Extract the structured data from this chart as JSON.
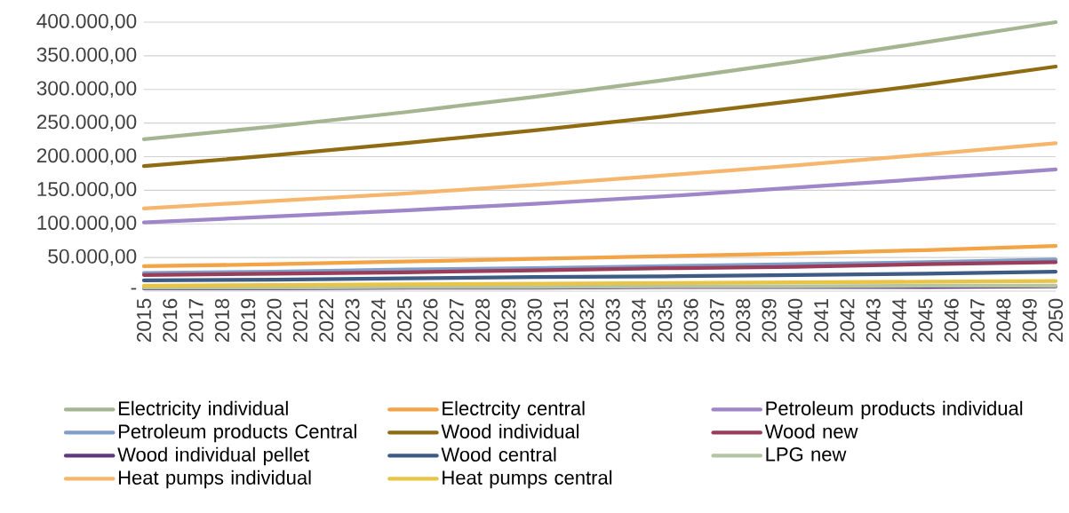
{
  "chart_data": {
    "type": "line",
    "x": [
      2015,
      2020,
      2025,
      2030,
      2035,
      2040,
      2045,
      2050
    ],
    "xlim": [
      2015,
      2050
    ],
    "xticks": [
      2015,
      2016,
      2017,
      2018,
      2019,
      2020,
      2021,
      2022,
      2023,
      2024,
      2025,
      2026,
      2027,
      2028,
      2029,
      2030,
      2031,
      2032,
      2033,
      2034,
      2035,
      2036,
      2037,
      2038,
      2039,
      2040,
      2041,
      2042,
      2043,
      2044,
      2045,
      2046,
      2047,
      2048,
      2049,
      2050
    ],
    "ylim": [
      0,
      400000
    ],
    "yticks": [
      {
        "value": 0,
        "label": "-"
      },
      {
        "value": 50000,
        "label": "50.000,00"
      },
      {
        "value": 100000,
        "label": "100.000,00"
      },
      {
        "value": 150000,
        "label": "150.000,00"
      },
      {
        "value": 200000,
        "label": "200.000,00"
      },
      {
        "value": 250000,
        "label": "250.000,00"
      },
      {
        "value": 300000,
        "label": "300.000,00"
      },
      {
        "value": 350000,
        "label": "350.000,00"
      },
      {
        "value": 400000,
        "label": "400.000,00"
      }
    ],
    "grid": "y",
    "legend": "bottom",
    "marker": "none",
    "line_style": "solid",
    "series": [
      {
        "name": "Electricity individual",
        "color": "#a5b592",
        "values": [
          226000,
          245000,
          266000,
          289000,
          314000,
          341000,
          370000,
          400000
        ]
      },
      {
        "name": "Electrcity central",
        "color": "#f3a447",
        "values": [
          37000,
          40000,
          44000,
          48000,
          52000,
          56000,
          61000,
          67000
        ]
      },
      {
        "name": "Petroleum products individual",
        "color": "#9e86c9",
        "values": [
          102000,
          111000,
          120000,
          130000,
          141000,
          154000,
          167000,
          181000
        ]
      },
      {
        "name": "Petroleum products Central",
        "color": "#7f9fc9",
        "values": [
          27000,
          29000,
          32000,
          34000,
          37000,
          40000,
          43000,
          47000
        ]
      },
      {
        "name": "Wood individual",
        "color": "#8f6c13",
        "values": [
          186000,
          202000,
          220000,
          239000,
          260000,
          283000,
          307000,
          334000
        ]
      },
      {
        "name": "Wood new",
        "color": "#993d5a",
        "values": [
          24000,
          26000,
          28000,
          31000,
          34000,
          36000,
          40000,
          43000
        ]
      },
      {
        "name": "Wood individual pellet",
        "color": "#60387f",
        "values": [
          4000,
          4000,
          5000,
          5000,
          6000,
          6000,
          6000,
          7000
        ]
      },
      {
        "name": "Wood central",
        "color": "#3e5b84",
        "values": [
          16000,
          17000,
          19000,
          21000,
          22000,
          24000,
          26000,
          29000
        ]
      },
      {
        "name": "LPG new",
        "color": "#b5c4a2",
        "values": [
          5000,
          5000,
          6000,
          6000,
          7000,
          7000,
          8000,
          8000
        ]
      },
      {
        "name": "Heat pumps individual",
        "color": "#f6b66d",
        "values": [
          123000,
          134000,
          145000,
          158000,
          172000,
          187000,
          203000,
          220000
        ]
      },
      {
        "name": "Heat pumps central",
        "color": "#e8c547",
        "values": [
          8000,
          9000,
          10000,
          11000,
          12000,
          13000,
          14000,
          15000
        ]
      }
    ]
  }
}
